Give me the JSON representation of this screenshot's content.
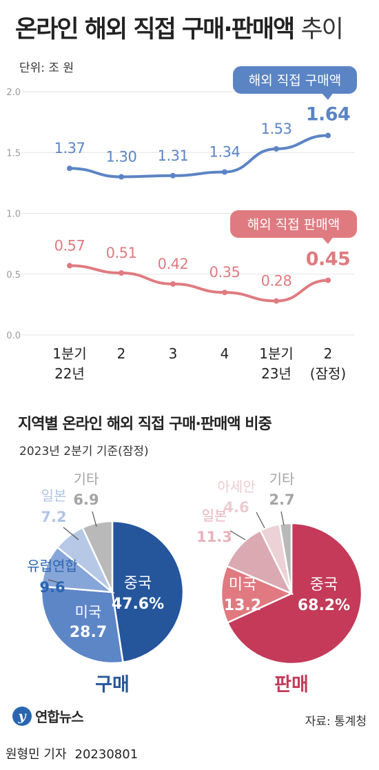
{
  "title": "온라인 해외 직접 구매·판매액",
  "title_suffix": "추이",
  "unit": "단위: 조 원",
  "chart_data": [
    {
      "type": "line",
      "categories": [
        "1분기\n22년",
        "2",
        "3",
        "4",
        "1분기\n23년",
        "2\n(잠정)"
      ],
      "ylim": [
        0,
        2.0
      ],
      "yticks": [
        "0.0",
        "0.5",
        "1.0",
        "1.5",
        "2.0"
      ],
      "grid": true,
      "series": [
        {
          "name": "해외 직접 구매액",
          "values": [
            1.37,
            1.3,
            1.31,
            1.34,
            1.53,
            1.64
          ],
          "labels": [
            "1.37",
            "1.30",
            "1.31",
            "1.34",
            "1.53",
            "1.64"
          ],
          "color": "#5b84c4"
        },
        {
          "name": "해외 직접 판매액",
          "values": [
            0.57,
            0.51,
            0.42,
            0.35,
            0.28,
            0.45
          ],
          "labels": [
            "0.57",
            "0.51",
            "0.42",
            "0.35",
            "0.28",
            "0.45"
          ],
          "color": "#df7b80"
        }
      ]
    },
    {
      "type": "pie",
      "title": "구매",
      "slices": [
        {
          "name": "중국",
          "value": 47.6,
          "label": "47.6%",
          "color": "#25559b"
        },
        {
          "name": "미국",
          "value": 28.7,
          "label": "28.7",
          "color": "#5d86c7"
        },
        {
          "name": "유럽연합",
          "value": 9.6,
          "label": "9.6",
          "color": "#86a5d9"
        },
        {
          "name": "일본",
          "value": 7.2,
          "label": "7.2",
          "color": "#b6c8e6"
        },
        {
          "name": "기타",
          "value": 6.9,
          "label": "6.9",
          "color": "#b9b9b9"
        }
      ]
    },
    {
      "type": "pie",
      "title": "판매",
      "slices": [
        {
          "name": "중국",
          "value": 68.2,
          "label": "68.2%",
          "color": "#c43a58"
        },
        {
          "name": "미국",
          "value": 13.2,
          "label": "13.2",
          "color": "#e07a80"
        },
        {
          "name": "일본",
          "value": 11.3,
          "label": "11.3",
          "color": "#dba9b2"
        },
        {
          "name": "아세안",
          "value": 4.6,
          "label": "4.6",
          "color": "#ecd2d7"
        },
        {
          "name": "기타",
          "value": 2.7,
          "label": "2.7",
          "color": "#b9b9b9"
        }
      ]
    }
  ],
  "section2": {
    "title": "지역별 온라인 해외 직접 구매·판매액 비중",
    "subtitle": "2023년 2분기 기준(잠정)"
  },
  "footer": {
    "logo_mark": "y",
    "logo_text": "연합뉴스",
    "source": "자료: 통계청",
    "reporter": "원형민 기자",
    "date": "20230801"
  }
}
